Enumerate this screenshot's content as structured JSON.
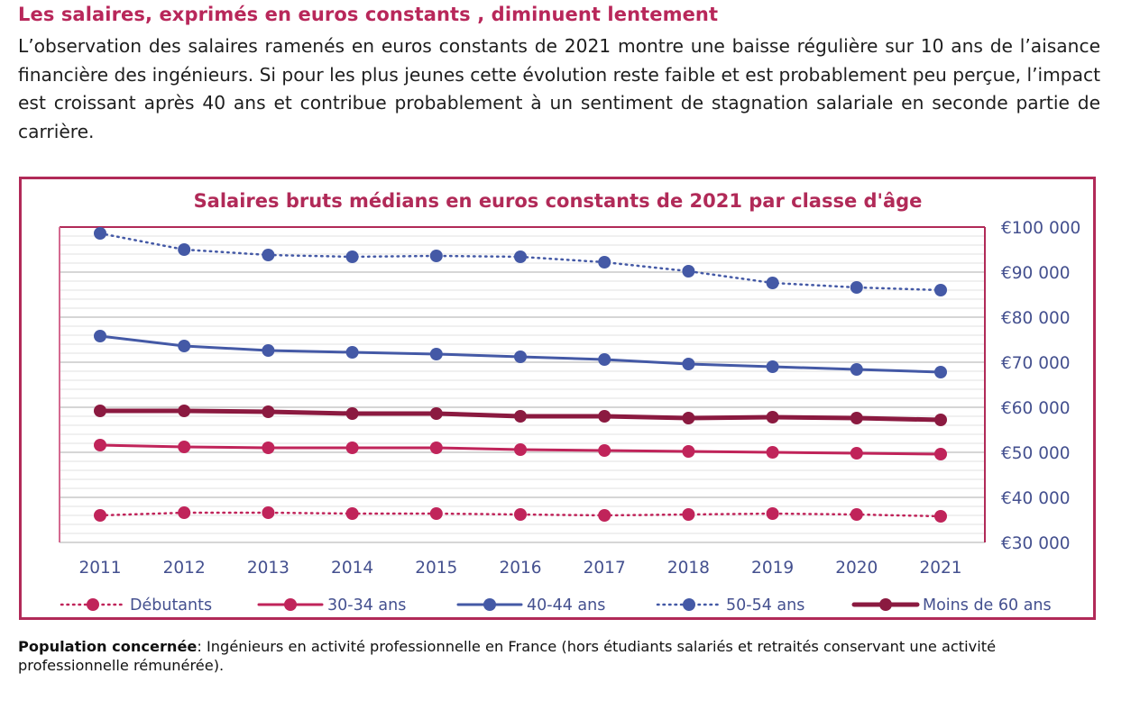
{
  "heading": "Les salaires, exprimés en euros constants , diminuent lentement",
  "intro": "L’observation des salaires ramenés en euros constants de 2021 montre une baisse régulière sur 10 ans de l’aisance financière des ingénieurs. Si pour les plus jeunes cette évolution reste faible et est probablement peu perçue, l’impact est croissant après 40 ans et contribue probablement à un sentiment de stagnation salariale en seconde partie de carrière.",
  "footnote": {
    "label": "Population concernée",
    "text": ": Ingénieurs en activité professionnelle en France (hors étudiants salariés et retraités conservant une activité professionnelle rémunérée)."
  },
  "colors": {
    "accent": "#b12a58",
    "navy": "#4459a6",
    "crimson": "#c0245a",
    "burgundy": "#8b1a40",
    "axis_text": "#44508f",
    "grid": "#e3e3e3"
  },
  "chart_data": {
    "type": "line",
    "title": "Salaires bruts médians en euros constants de 2021 par classe d'âge",
    "xlabel": "",
    "ylabel": "",
    "x": [
      "2011",
      "2012",
      "2013",
      "2014",
      "2015",
      "2016",
      "2017",
      "2018",
      "2019",
      "2020",
      "2021"
    ],
    "ylim": [
      30000,
      100000
    ],
    "yticks": [
      100000,
      90000,
      80000,
      70000,
      60000,
      50000,
      40000,
      30000
    ],
    "ytick_labels": [
      "€100 000",
      "€90 000",
      "€80 000",
      "€70 000",
      "€60 000",
      "€50 000",
      "€40 000",
      "€30 000"
    ],
    "y_axis_side": "right",
    "grid": true,
    "legend_position": "bottom",
    "series": [
      {
        "name": "Débutants",
        "style": "dotted",
        "color": "#c0245a",
        "values": [
          36000,
          36600,
          36600,
          36400,
          36400,
          36200,
          36000,
          36200,
          36400,
          36200,
          35800
        ]
      },
      {
        "name": "30-34 ans",
        "style": "solid",
        "color": "#c0245a",
        "values": [
          51600,
          51200,
          51000,
          51000,
          51000,
          50600,
          50400,
          50200,
          50000,
          49800,
          49600
        ]
      },
      {
        "name": "40-44 ans",
        "style": "solid",
        "color": "#4459a6",
        "values": [
          75800,
          73600,
          72600,
          72200,
          71800,
          71200,
          70600,
          69600,
          69000,
          68400,
          67800
        ]
      },
      {
        "name": "50-54 ans",
        "style": "dotted",
        "color": "#4459a6",
        "values": [
          98600,
          95000,
          93800,
          93400,
          93600,
          93400,
          92200,
          90200,
          87600,
          86600,
          86000
        ]
      },
      {
        "name": "Moins de 60 ans",
        "style": "thick",
        "color": "#8b1a40",
        "values": [
          59200,
          59200,
          59000,
          58600,
          58600,
          58000,
          58000,
          57600,
          57800,
          57600,
          57200
        ]
      }
    ]
  }
}
